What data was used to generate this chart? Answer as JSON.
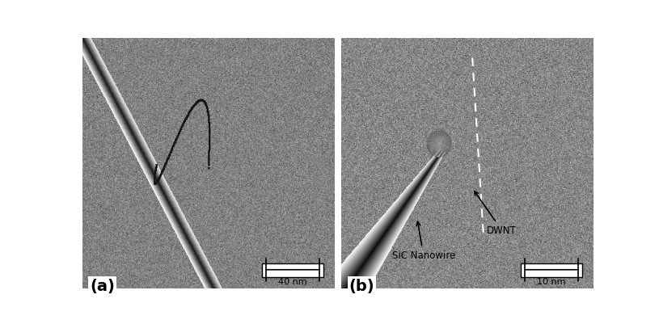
{
  "panel_a_label": "(a)",
  "panel_b_label": "(b)",
  "scale_bar_a_text": "40 nm",
  "scale_bar_b_text": "10 nm",
  "label_sic": "SiC Nanowire",
  "label_dwnt": "DWNT",
  "bg_color": "#b0b0b0",
  "border_color": "#000000",
  "text_color": "#000000",
  "white_color": "#ffffff",
  "noise_seed_a": 42,
  "noise_seed_b": 99,
  "fig_width": 8.15,
  "fig_height": 4.02
}
